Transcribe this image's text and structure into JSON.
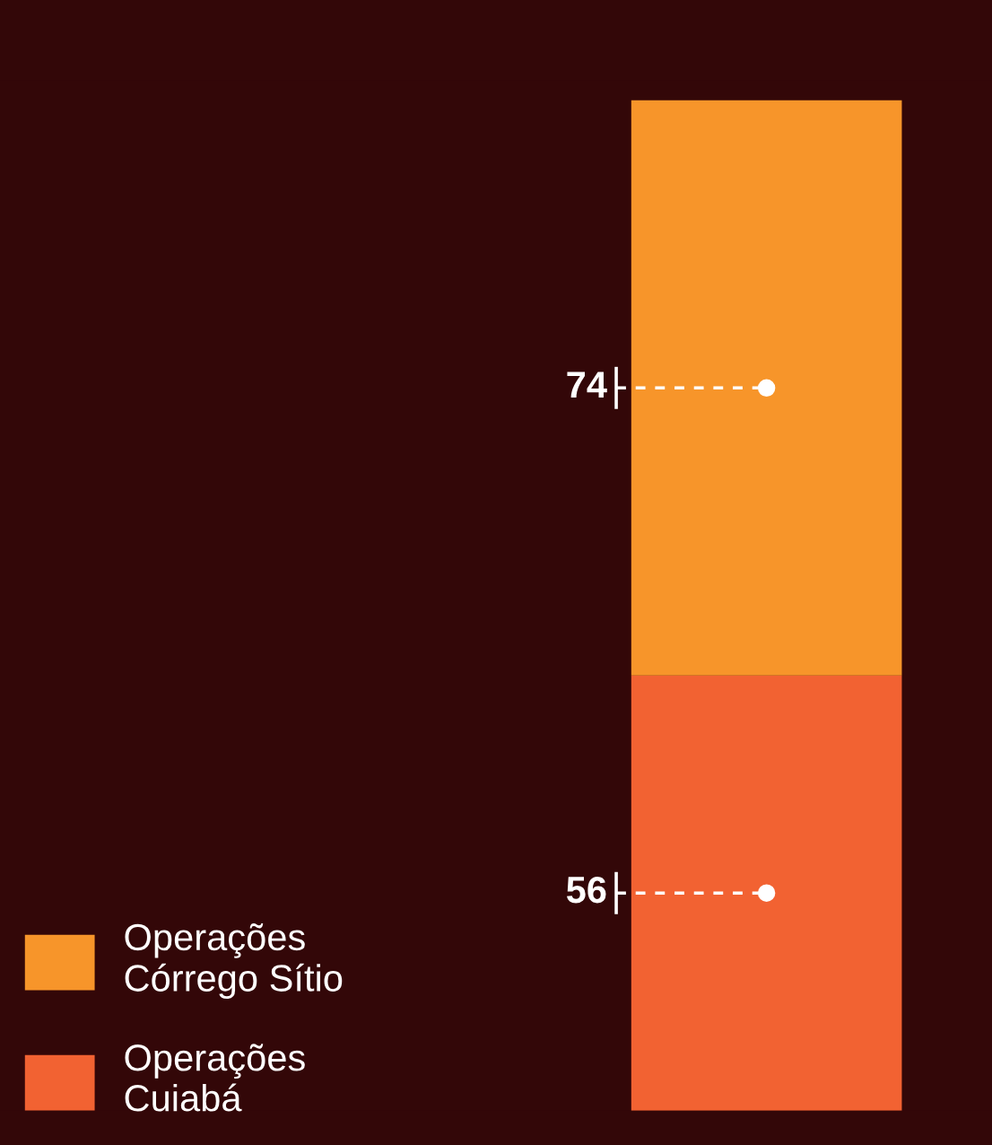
{
  "chart_data": {
    "type": "bar",
    "stacked": true,
    "categories": [
      null
    ],
    "data_labels": true,
    "legend": "bottom left",
    "series": [
      {
        "name": "Operações\nCuiabá",
        "color": "#f26232",
        "values": [
          56
        ]
      },
      {
        "name": "Operações\nCórrego Sítio",
        "color": "#f7952a",
        "values": [
          74
        ]
      }
    ]
  }
}
